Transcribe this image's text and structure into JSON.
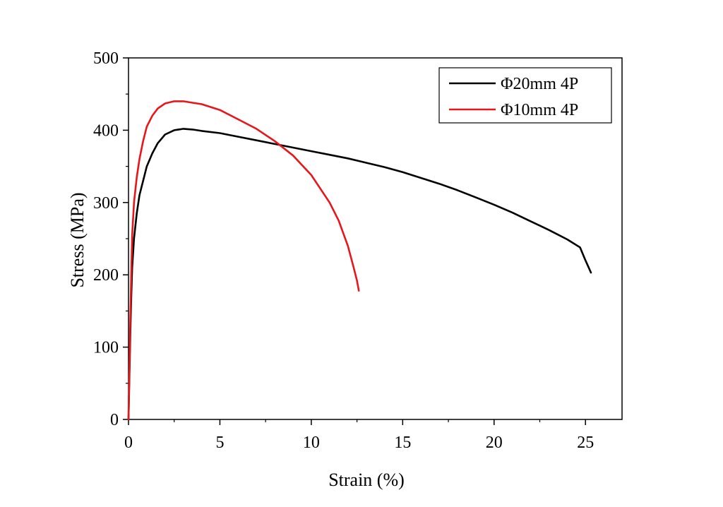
{
  "chart_data": {
    "type": "line",
    "title": "",
    "xlabel": "Strain (%)",
    "ylabel": "Stress (MPa)",
    "xlim": [
      0,
      27
    ],
    "ylim": [
      0,
      500
    ],
    "xticks": [
      0,
      5,
      10,
      15,
      20,
      25
    ],
    "yticks": [
      0,
      100,
      200,
      300,
      400,
      500
    ],
    "grid": false,
    "legend_position": "top-right",
    "series": [
      {
        "name": "Φ20mm 4P",
        "color": "#000000",
        "points": [
          [
            0,
            0
          ],
          [
            0.05,
            60
          ],
          [
            0.1,
            120
          ],
          [
            0.15,
            170
          ],
          [
            0.2,
            210
          ],
          [
            0.3,
            250
          ],
          [
            0.45,
            285
          ],
          [
            0.6,
            310
          ],
          [
            0.8,
            330
          ],
          [
            1.0,
            350
          ],
          [
            1.3,
            368
          ],
          [
            1.6,
            382
          ],
          [
            2.0,
            394
          ],
          [
            2.5,
            400
          ],
          [
            3.0,
            402
          ],
          [
            3.5,
            401
          ],
          [
            4.0,
            399
          ],
          [
            5.0,
            396
          ],
          [
            6.0,
            391
          ],
          [
            7.0,
            386
          ],
          [
            8.0,
            381
          ],
          [
            9.0,
            376
          ],
          [
            10.0,
            371
          ],
          [
            11.0,
            366
          ],
          [
            12.0,
            361
          ],
          [
            13.0,
            355
          ],
          [
            14.0,
            349
          ],
          [
            15.0,
            342
          ],
          [
            16.0,
            334
          ],
          [
            17.0,
            326
          ],
          [
            18.0,
            317
          ],
          [
            19.0,
            307
          ],
          [
            20.0,
            297
          ],
          [
            21.0,
            286
          ],
          [
            22.0,
            274
          ],
          [
            23.0,
            262
          ],
          [
            24.0,
            249
          ],
          [
            24.7,
            238
          ],
          [
            25.0,
            220
          ],
          [
            25.3,
            203
          ]
        ]
      },
      {
        "name": "Φ10mm 4P",
        "color": "#e8161b",
        "points": [
          [
            0,
            0
          ],
          [
            0.05,
            70
          ],
          [
            0.1,
            140
          ],
          [
            0.15,
            200
          ],
          [
            0.2,
            255
          ],
          [
            0.3,
            300
          ],
          [
            0.45,
            335
          ],
          [
            0.6,
            360
          ],
          [
            0.8,
            385
          ],
          [
            1.0,
            405
          ],
          [
            1.3,
            420
          ],
          [
            1.6,
            430
          ],
          [
            2.0,
            437
          ],
          [
            2.5,
            440
          ],
          [
            3.0,
            440
          ],
          [
            3.5,
            438
          ],
          [
            4.0,
            436
          ],
          [
            5.0,
            428
          ],
          [
            6.0,
            415
          ],
          [
            7.0,
            402
          ],
          [
            8.0,
            385
          ],
          [
            9.0,
            365
          ],
          [
            10.0,
            338
          ],
          [
            11.0,
            300
          ],
          [
            11.5,
            275
          ],
          [
            12.0,
            240
          ],
          [
            12.3,
            212
          ],
          [
            12.5,
            192
          ],
          [
            12.6,
            178
          ]
        ]
      }
    ]
  }
}
